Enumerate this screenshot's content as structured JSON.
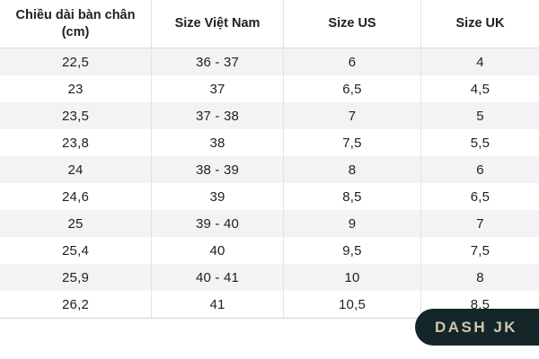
{
  "chart_data": {
    "type": "table",
    "columns": [
      "Chiều dài bàn chân (cm)",
      "Size Việt Nam",
      "Size US",
      "Size UK"
    ],
    "rows": [
      [
        "22,5",
        "36 - 37",
        "6",
        "4"
      ],
      [
        "23",
        "37",
        "6,5",
        "4,5"
      ],
      [
        "23,5",
        "37 - 38",
        "7",
        "5"
      ],
      [
        "23,8",
        "38",
        "7,5",
        "5,5"
      ],
      [
        "24",
        "38 - 39",
        "8",
        "6"
      ],
      [
        "24,6",
        "39",
        "8,5",
        "6,5"
      ],
      [
        "25",
        "39 - 40",
        "9",
        "7"
      ],
      [
        "25,4",
        "40",
        "9,5",
        "7,5"
      ],
      [
        "25,9",
        "40 - 41",
        "10",
        "8"
      ],
      [
        "26,2",
        "41",
        "10,5",
        "8,5"
      ]
    ],
    "layout_hints": {
      "stripe_pattern": "first data row shaded, alternating",
      "decimal_separator": "comma"
    }
  },
  "brand": {
    "label": "DASH JK"
  },
  "colors": {
    "row_stripe": "#f3f3f5",
    "column_border": "#e3e3e4",
    "header_border": "#d9d9d9",
    "table_bottom_border": "#d2d2d2",
    "text": "#1f1f1f",
    "brand_pill_bg": "#152628",
    "brand_text": "#d0c7ae"
  }
}
